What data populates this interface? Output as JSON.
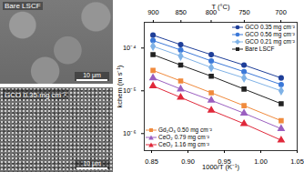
{
  "images": [
    {
      "label": "Bare LSCF",
      "scale_bar": "10 μm"
    },
    {
      "label": "GCO 0.35 mg cm⁻²",
      "scale_bar": "10 μm"
    }
  ],
  "chart_data": {
    "type": "scatter",
    "log": "y",
    "x_label": "1000/T (K⁻¹)",
    "y_label": "kchem (m s⁻¹)",
    "top_axis": {
      "label": "T (°C)",
      "ticks": [
        900,
        850,
        800,
        750,
        700
      ]
    },
    "x": [
      0.852,
      0.89,
      0.932,
      0.977,
      1.028
    ],
    "xlim": [
      0.84,
      1.05
    ],
    "xticks": [
      {
        "value": 0.85,
        "label": "0.85"
      },
      {
        "value": 0.9,
        "label": "0.90"
      },
      {
        "value": 0.95,
        "label": "0.95"
      },
      {
        "value": 1.0,
        "label": "1.00"
      },
      {
        "value": 1.05,
        "label": "1.05"
      }
    ],
    "ylim": [
      4e-07,
      0.0004
    ],
    "yticks": [
      {
        "value": 1e-06,
        "label": "10⁻⁶"
      },
      {
        "value": 1e-05,
        "label": "10⁻⁵"
      },
      {
        "value": 0.0001,
        "label": "10⁻⁴"
      }
    ],
    "series": [
      {
        "name": "GCO 0.35 mg cm⁻²",
        "color": "#1f3f99",
        "marker": "circle",
        "line_style": "solid",
        "legend": "upper right",
        "values": [
          0.0002,
          0.00012,
          7e-05,
          4e-05,
          2e-05
        ]
      },
      {
        "name": "GCO 0.56 mg cm⁻²",
        "color": "#3b78d8",
        "marker": "circle",
        "line_style": "solid",
        "legend": "upper right",
        "values": [
          0.00015,
          9e-05,
          5e-05,
          2.8e-05,
          1.4e-05
        ]
      },
      {
        "name": "GCO 0.21 mg cm⁻²",
        "color": "#7fb2e6",
        "marker": "diamond",
        "line_style": "solid",
        "legend": "upper right",
        "values": [
          0.00011,
          6.5e-05,
          3.5e-05,
          2e-05,
          1e-05
        ]
      },
      {
        "name": "Bare LSCF",
        "color": "#222222",
        "marker": "square",
        "line_style": "solid",
        "legend": "upper right",
        "values": [
          7e-05,
          4e-05,
          2.2e-05,
          1.1e-05,
          5e-06
        ]
      },
      {
        "name": "Gd₂O₃ 0.50 mg cm⁻²",
        "color": "#f08a3c",
        "marker": "square",
        "line_style": "solid",
        "legend": "lower left",
        "values": [
          3e-05,
          1.7e-05,
          9e-06,
          4.5e-06,
          2e-06
        ]
      },
      {
        "name": "CeO₂ 0.79 mg cm⁻²",
        "color": "#9b5fc0",
        "marker": "triangle",
        "line_style": "solid",
        "legend": "lower left",
        "values": [
          2e-05,
          1.1e-05,
          6e-06,
          3e-06,
          1.3e-06
        ]
      },
      {
        "name": "CeO₂ 1.16 mg cm⁻²",
        "color": "#e0283a",
        "marker": "triangle",
        "line_style": "solid",
        "legend": "lower left",
        "values": [
          1.3e-05,
          7e-06,
          3.5e-06,
          1.7e-06,
          7e-07
        ]
      }
    ]
  }
}
